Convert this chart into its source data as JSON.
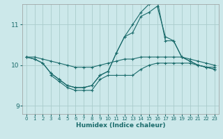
{
  "xlabel": "Humidex (Indice chaleur)",
  "ylabel": "",
  "xlim": [
    -0.5,
    23.5
  ],
  "ylim": [
    8.8,
    11.5
  ],
  "yticks": [
    9,
    10,
    11
  ],
  "xticks": [
    0,
    1,
    2,
    3,
    4,
    5,
    6,
    7,
    8,
    9,
    10,
    11,
    12,
    13,
    14,
    15,
    16,
    17,
    18,
    19,
    20,
    21,
    22,
    23
  ],
  "background_color": "#cce8ea",
  "grid_color": "#aacccc",
  "line_color": "#1a6b6b",
  "lines": [
    {
      "x": [
        0,
        1,
        2,
        3,
        4,
        5,
        6,
        7,
        8,
        9,
        10,
        11,
        12,
        13,
        14,
        15,
        16,
        17,
        18,
        19,
        20,
        21,
        22,
        23
      ],
      "y": [
        10.2,
        10.2,
        10.15,
        10.1,
        10.05,
        10.0,
        9.95,
        9.95,
        9.95,
        10.0,
        10.05,
        10.1,
        10.15,
        10.15,
        10.2,
        10.2,
        10.2,
        10.2,
        10.2,
        10.2,
        10.15,
        10.1,
        10.05,
        10.0
      ]
    },
    {
      "x": [
        0,
        1,
        2,
        3,
        4,
        5,
        6,
        7,
        8,
        9,
        10,
        11,
        12,
        13,
        14,
        15,
        16,
        17,
        18,
        19,
        20,
        21,
        22,
        23
      ],
      "y": [
        10.2,
        10.15,
        10.05,
        9.8,
        9.65,
        9.5,
        9.45,
        9.45,
        9.5,
        9.75,
        9.85,
        10.3,
        10.7,
        10.8,
        11.2,
        11.3,
        11.45,
        10.7,
        10.6,
        10.2,
        10.1,
        10.0,
        9.95,
        9.9
      ]
    },
    {
      "x": [
        0,
        1,
        2,
        3,
        4,
        5,
        6,
        7,
        8,
        9,
        10,
        11,
        12,
        13,
        14,
        15,
        16,
        17,
        18,
        19,
        20,
        21,
        22,
        23
      ],
      "y": [
        10.2,
        10.15,
        10.05,
        9.8,
        9.65,
        9.5,
        9.45,
        9.45,
        9.5,
        9.75,
        9.85,
        10.3,
        10.7,
        11.0,
        11.3,
        11.5,
        11.6,
        10.6,
        10.6,
        10.2,
        10.1,
        10.0,
        9.95,
        9.9
      ]
    },
    {
      "x": [
        3,
        4,
        5,
        6,
        7,
        8,
        9,
        10,
        11,
        12,
        13,
        14,
        15,
        16,
        17,
        18,
        19,
        20,
        21,
        22,
        23
      ],
      "y": [
        9.75,
        9.6,
        9.45,
        9.38,
        9.38,
        9.38,
        9.65,
        9.75,
        9.75,
        9.75,
        9.75,
        9.9,
        10.0,
        10.05,
        10.05,
        10.05,
        10.05,
        10.05,
        10.0,
        9.95,
        9.95
      ]
    }
  ]
}
